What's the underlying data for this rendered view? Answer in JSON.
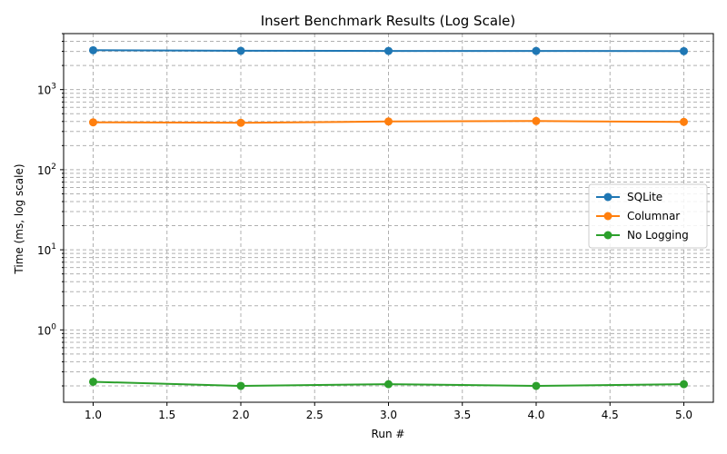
{
  "chart_data": {
    "type": "line",
    "title": "Insert Benchmark Results (Log Scale)",
    "xlabel": "Run #",
    "ylabel": "Time (ms, log scale)",
    "y_scale": "log",
    "xlim": [
      0.8,
      5.2
    ],
    "ylim": [
      0.125,
      5000
    ],
    "grid": true,
    "legend_position": "center-right",
    "x": [
      1,
      2,
      3,
      4,
      5
    ],
    "x_ticks": [
      "1.0",
      "1.5",
      "2.0",
      "2.5",
      "3.0",
      "3.5",
      "4.0",
      "4.5",
      "5.0"
    ],
    "y_ticks": [
      "10^0",
      "10^1",
      "10^2",
      "10^3"
    ],
    "series": [
      {
        "name": "SQLite",
        "color": "#1f77b4",
        "values": [
          3100,
          3050,
          3040,
          3040,
          3020
        ]
      },
      {
        "name": "Columnar",
        "color": "#ff7f0e",
        "values": [
          390,
          385,
          400,
          405,
          395
        ]
      },
      {
        "name": "No Logging",
        "color": "#2ca02c",
        "values": [
          0.225,
          0.2,
          0.21,
          0.2,
          0.21
        ]
      }
    ]
  }
}
